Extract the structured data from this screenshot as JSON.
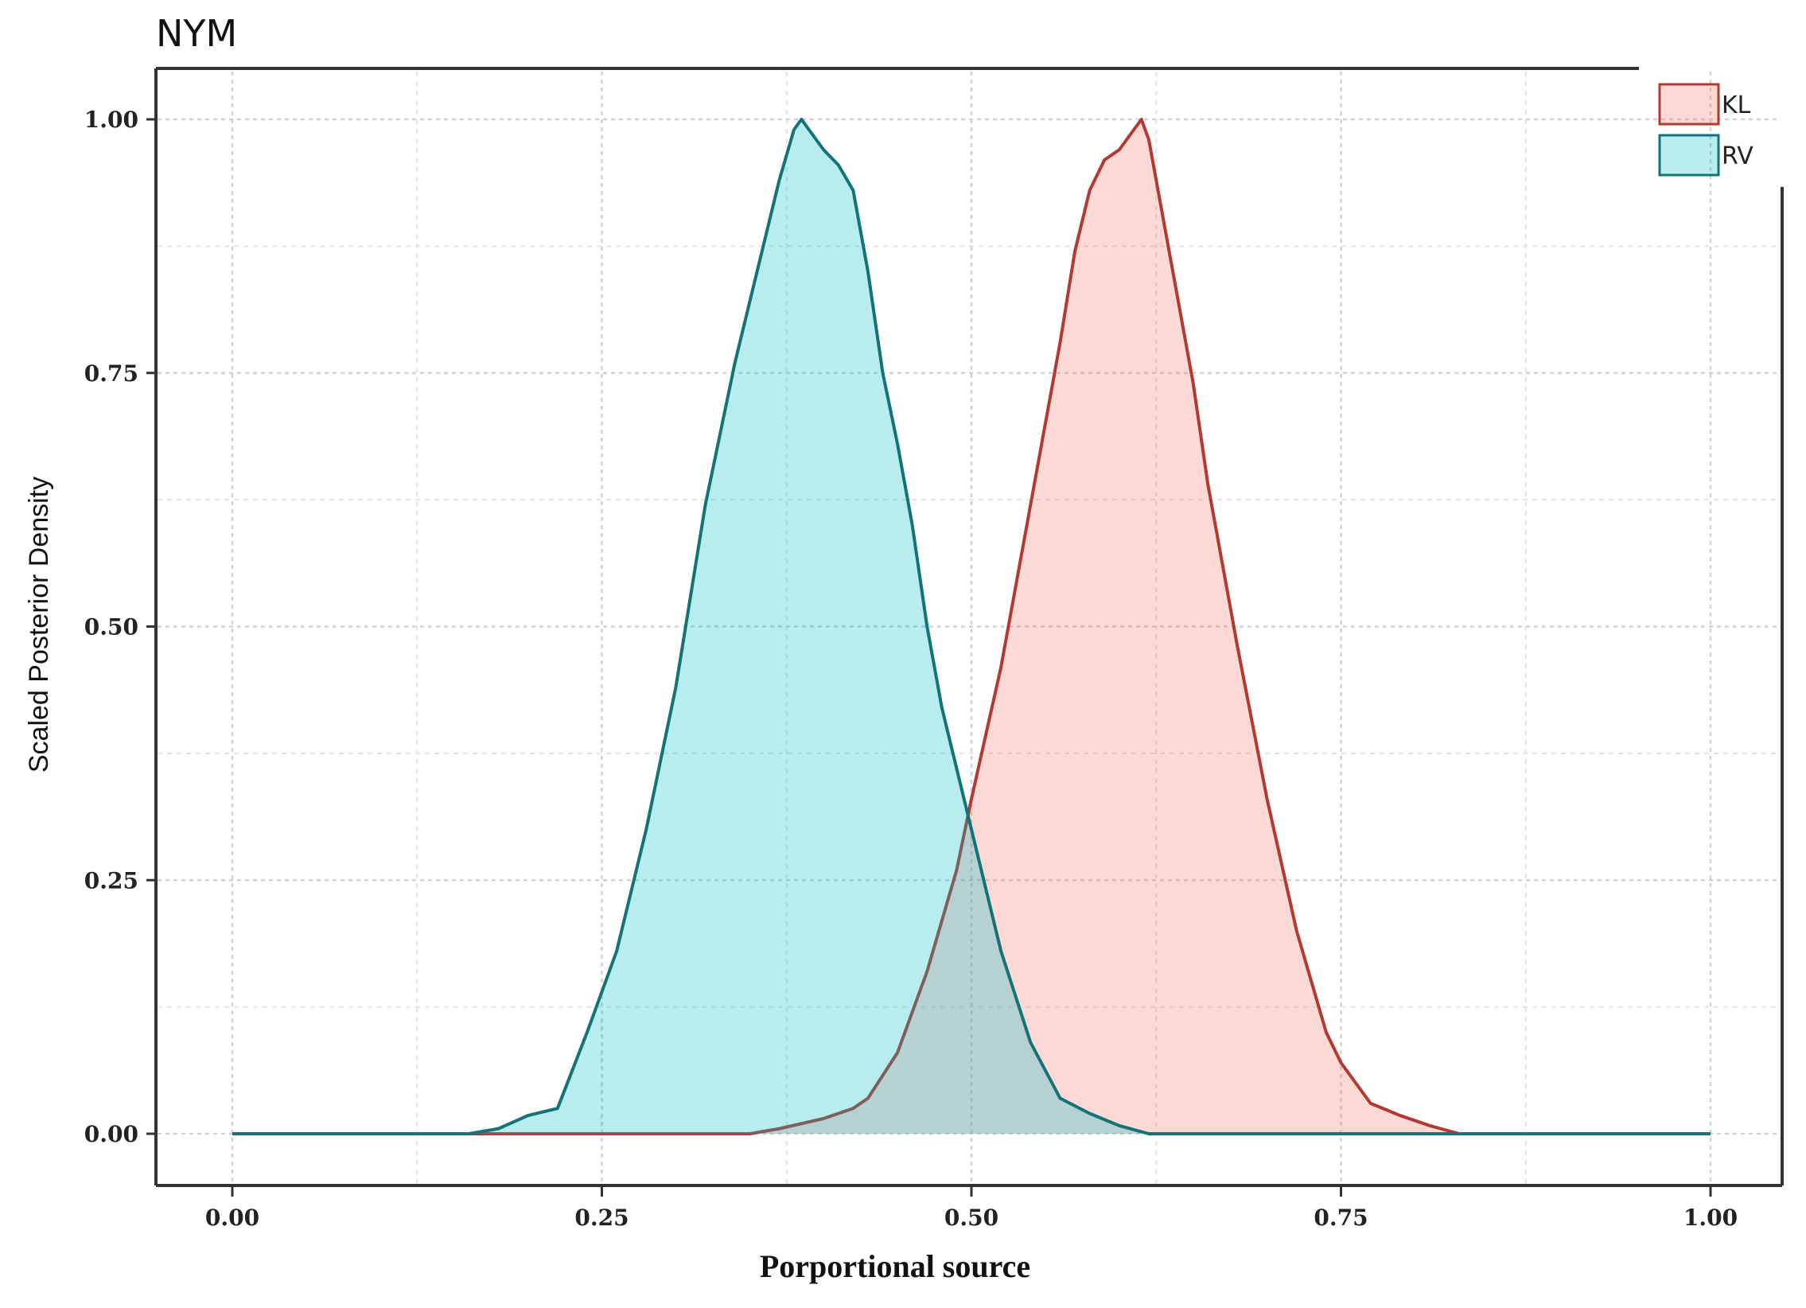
{
  "chart_data": {
    "type": "area",
    "title": "NYM",
    "xlabel": "Porportional source",
    "ylabel": "Scaled Posterior Density",
    "xlim": [
      0.0,
      1.0
    ],
    "ylim": [
      0.0,
      1.0
    ],
    "x_ticks": [
      "0.00",
      "0.25",
      "0.50",
      "0.75",
      "1.00"
    ],
    "y_ticks": [
      "0.00",
      "0.25",
      "0.50",
      "0.75",
      "1.00"
    ],
    "grid": true,
    "legend_position": "top-right",
    "series": [
      {
        "name": "KL",
        "fill": "#f8766d",
        "line": "#b23a32",
        "x": [
          0.0,
          0.3,
          0.35,
          0.37,
          0.4,
          0.42,
          0.43,
          0.45,
          0.47,
          0.49,
          0.5,
          0.52,
          0.54,
          0.56,
          0.57,
          0.58,
          0.59,
          0.6,
          0.61,
          0.615,
          0.62,
          0.63,
          0.64,
          0.65,
          0.66,
          0.68,
          0.7,
          0.72,
          0.74,
          0.75,
          0.77,
          0.79,
          0.81,
          0.83,
          1.0
        ],
        "y": [
          0.0,
          0.0,
          0.0,
          0.005,
          0.015,
          0.025,
          0.035,
          0.08,
          0.16,
          0.26,
          0.33,
          0.46,
          0.62,
          0.78,
          0.87,
          0.93,
          0.96,
          0.97,
          0.99,
          1.0,
          0.98,
          0.9,
          0.82,
          0.74,
          0.64,
          0.48,
          0.33,
          0.2,
          0.1,
          0.07,
          0.03,
          0.018,
          0.008,
          0.0,
          0.0
        ]
      },
      {
        "name": "RV",
        "fill": "#00bfc4",
        "line": "#137377",
        "x": [
          0.0,
          0.16,
          0.18,
          0.2,
          0.22,
          0.24,
          0.26,
          0.28,
          0.3,
          0.32,
          0.34,
          0.36,
          0.37,
          0.38,
          0.385,
          0.39,
          0.4,
          0.41,
          0.42,
          0.43,
          0.44,
          0.45,
          0.46,
          0.47,
          0.48,
          0.49,
          0.5,
          0.52,
          0.54,
          0.56,
          0.58,
          0.6,
          0.62,
          0.64,
          1.0
        ],
        "y": [
          0.0,
          0.0,
          0.005,
          0.018,
          0.025,
          0.1,
          0.18,
          0.3,
          0.44,
          0.62,
          0.76,
          0.88,
          0.94,
          0.99,
          1.0,
          0.99,
          0.97,
          0.955,
          0.93,
          0.85,
          0.75,
          0.68,
          0.6,
          0.5,
          0.42,
          0.36,
          0.3,
          0.18,
          0.09,
          0.035,
          0.02,
          0.008,
          0.0,
          0.0,
          0.0
        ]
      }
    ]
  }
}
